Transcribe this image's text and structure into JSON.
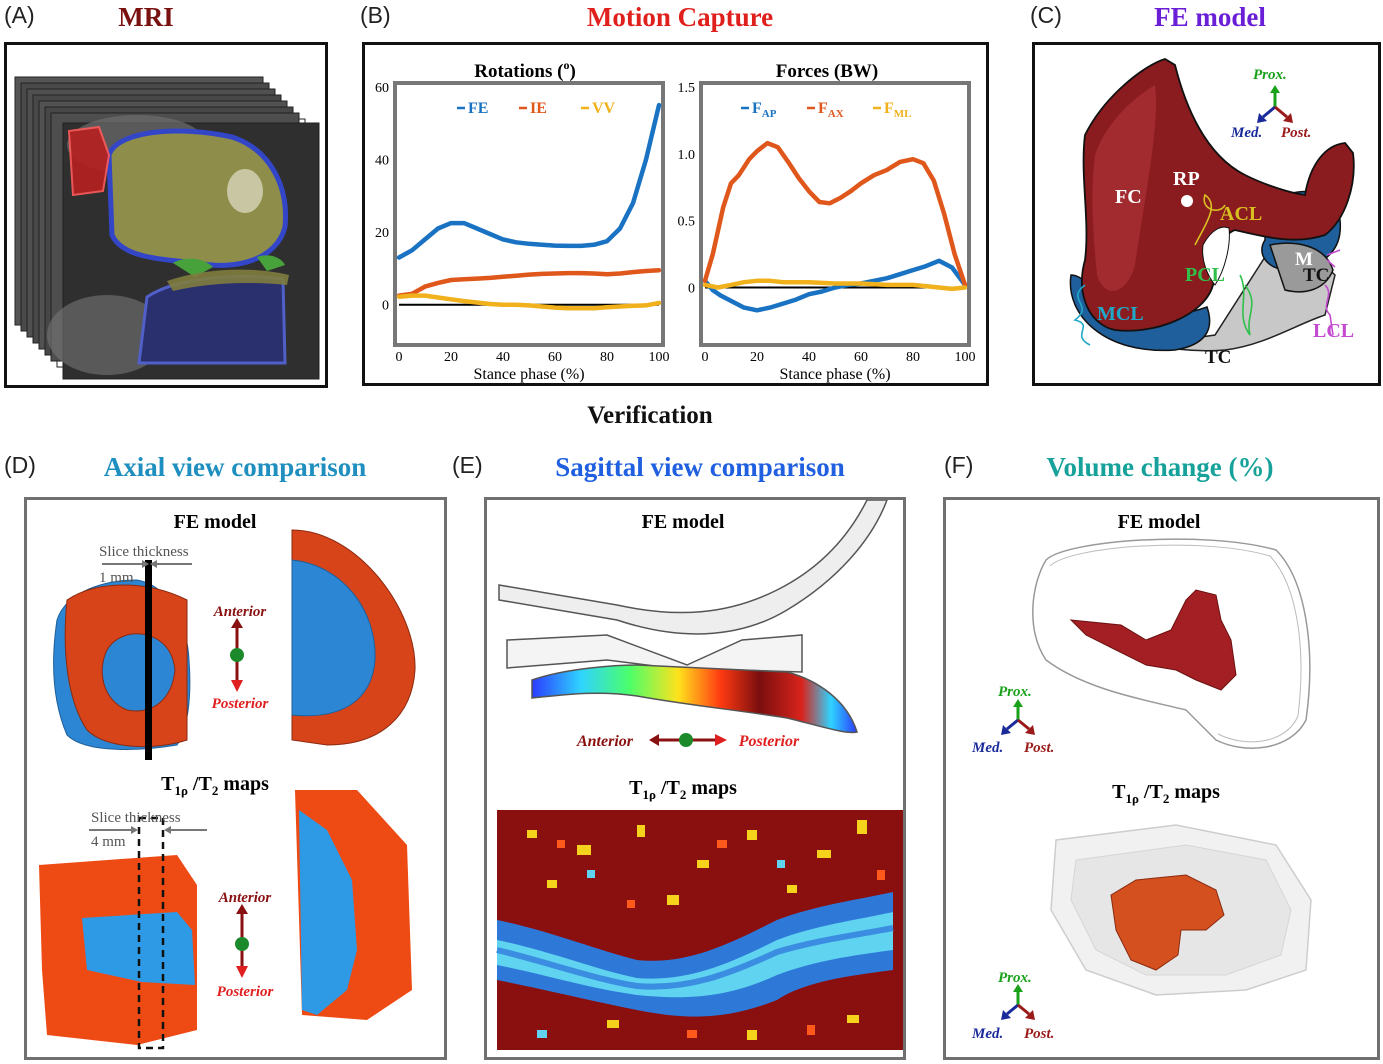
{
  "panels": {
    "a": {
      "label": "(A)",
      "title": "MRI"
    },
    "b": {
      "label": "(B)",
      "title": "Motion Capture"
    },
    "c": {
      "label": "(C)",
      "title": "FE model"
    },
    "d": {
      "label": "(D)",
      "title": "Axial view comparison"
    },
    "e": {
      "label": "(E)",
      "title": "Sagittal view comparison"
    },
    "f": {
      "label": "(F)",
      "title": "Volume change (%)"
    }
  },
  "verification_heading": "Verification",
  "colors": {
    "a_title": "#7a1111",
    "b_title": "#e0201c",
    "c_title": "#6a1fd6",
    "d_title": "#1f8fbf",
    "e_title": "#1f5fe0",
    "f_title": "#16a29a"
  },
  "chart_data": [
    {
      "type": "line",
      "title": "Rotations (o)",
      "title_main": "Rotations (",
      "title_sup": "o",
      "title_end": ")",
      "xlabel": "Stance phase (%)",
      "ylabel": "",
      "xlim": [
        0,
        100
      ],
      "ylim": [
        -10,
        60
      ],
      "xticks": [
        "0",
        "20",
        "40",
        "60",
        "80",
        "100"
      ],
      "yticks": [
        "0",
        "20",
        "40",
        "60"
      ],
      "legend_position": "top",
      "series": [
        {
          "name": "FE",
          "color": "#1a73c2",
          "x": [
            0,
            5,
            10,
            15,
            20,
            25,
            30,
            35,
            40,
            45,
            50,
            55,
            60,
            65,
            70,
            75,
            80,
            85,
            90,
            95,
            100
          ],
          "y": [
            13,
            15,
            18,
            21,
            22.5,
            22.5,
            21,
            19.5,
            18,
            17.2,
            16.8,
            16.5,
            16.3,
            16.2,
            16.2,
            16.5,
            17.5,
            21,
            28,
            40,
            55
          ]
        },
        {
          "name": "IE",
          "color": "#e0571c",
          "x": [
            0,
            5,
            10,
            15,
            20,
            25,
            30,
            35,
            40,
            45,
            50,
            55,
            60,
            65,
            70,
            75,
            80,
            85,
            90,
            95,
            100
          ],
          "y": [
            2.5,
            3,
            5,
            6,
            6.8,
            7,
            7.2,
            7.4,
            7.7,
            8,
            8.3,
            8.5,
            8.6,
            8.7,
            8.7,
            8.6,
            8.4,
            8.6,
            9,
            9.3,
            9.5
          ]
        },
        {
          "name": "VV",
          "color": "#f0b11c",
          "x": [
            0,
            5,
            10,
            15,
            20,
            25,
            30,
            35,
            40,
            45,
            50,
            55,
            60,
            65,
            70,
            75,
            80,
            85,
            90,
            95,
            100
          ],
          "y": [
            2.2,
            2.5,
            2.5,
            2,
            1.5,
            1,
            0.6,
            0.2,
            0,
            0,
            -0.2,
            -0.5,
            -0.8,
            -1,
            -1,
            -1,
            -0.7,
            -0.5,
            -0.3,
            -0.2,
            0.5
          ]
        }
      ]
    },
    {
      "type": "line",
      "title": "Forces (BW)",
      "xlabel": "Stance phase (%)",
      "ylabel": "",
      "xlim": [
        0,
        100
      ],
      "ylim": [
        -0.4,
        1.5
      ],
      "xticks": [
        "0",
        "20",
        "40",
        "60",
        "80",
        "100"
      ],
      "yticks": [
        "0",
        "0.5",
        "1.0",
        "1.5"
      ],
      "legend_position": "top",
      "series": [
        {
          "name": "F",
          "sub": "AP",
          "color": "#1a73c2",
          "x": [
            0,
            3,
            6,
            10,
            15,
            20,
            25,
            30,
            35,
            40,
            45,
            50,
            55,
            60,
            65,
            70,
            75,
            80,
            85,
            90,
            95,
            100
          ],
          "y": [
            0.05,
            -0.02,
            -0.06,
            -0.1,
            -0.15,
            -0.17,
            -0.15,
            -0.12,
            -0.09,
            -0.05,
            -0.03,
            0,
            0.02,
            0.03,
            0.05,
            0.07,
            0.1,
            0.13,
            0.16,
            0.2,
            0.15,
            0.02
          ]
        },
        {
          "name": "F",
          "sub": "AX",
          "color": "#e0571c",
          "x": [
            0,
            3,
            7,
            10,
            13,
            17,
            20,
            24,
            28,
            32,
            36,
            40,
            44,
            48,
            52,
            56,
            60,
            65,
            70,
            75,
            80,
            84,
            88,
            92,
            96,
            100
          ],
          "y": [
            0.05,
            0.25,
            0.6,
            0.78,
            0.84,
            0.96,
            1.02,
            1.08,
            1.05,
            0.94,
            0.82,
            0.72,
            0.64,
            0.63,
            0.67,
            0.72,
            0.78,
            0.84,
            0.88,
            0.94,
            0.96,
            0.93,
            0.8,
            0.55,
            0.25,
            0.02
          ]
        },
        {
          "name": "F",
          "sub": "ML",
          "color": "#f0b11c",
          "x": [
            0,
            5,
            10,
            15,
            20,
            25,
            30,
            40,
            50,
            60,
            70,
            80,
            90,
            95,
            100
          ],
          "y": [
            0.02,
            0.0,
            0.02,
            0.04,
            0.05,
            0.05,
            0.04,
            0.04,
            0.03,
            0.03,
            0.02,
            0.02,
            0.0,
            -0.01,
            0.0
          ]
        }
      ]
    }
  ],
  "c_labels": {
    "fc": "FC",
    "rp": "RP",
    "acl": "ACL",
    "pcl": "PCL",
    "mcl": "MCL",
    "lcl": "LCL",
    "m": "M",
    "tc1": "TC",
    "tc2": "TC",
    "prox": "Prox.",
    "med": "Med.",
    "post": "Post."
  },
  "d": {
    "fe": "FE model",
    "maps_pre": "T",
    "maps_sub": "1ρ",
    "maps_post": " /T",
    "maps_sub2": "2",
    "maps_end": " maps",
    "slice1": "Slice thickness",
    "mm1": "1 mm",
    "slice2": "Slice thickness",
    "mm2": "4 mm",
    "ant1": "Anterior",
    "post1": "Posterior",
    "ant2": "Anterior",
    "post2": "Posterior"
  },
  "e": {
    "fe": "FE model",
    "maps_pre": "T",
    "maps_sub": "1ρ",
    "maps_post": " /T",
    "maps_sub2": "2",
    "maps_end": " maps",
    "ant": "Anterior",
    "post": "Posterior"
  },
  "f": {
    "fe": "FE model",
    "maps_pre": "T",
    "maps_sub": "1ρ",
    "maps_post": " /T",
    "maps_sub2": "2",
    "maps_end": " maps",
    "prox1": "Prox.",
    "med1": "Med.",
    "post1": "Post.",
    "prox2": "Prox.",
    "med2": "Med.",
    "post2": "Post."
  }
}
